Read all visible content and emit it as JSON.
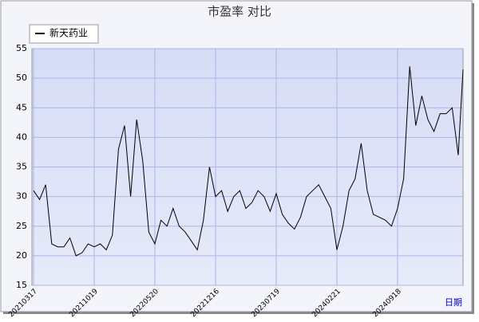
{
  "chart_data": {
    "type": "line",
    "title": "市盈率  对比",
    "x_label": "日期",
    "categories": [
      "20210317",
      null,
      null,
      null,
      null,
      null,
      null,
      null,
      null,
      null,
      "20211019",
      null,
      null,
      null,
      null,
      null,
      null,
      null,
      null,
      null,
      "20220520",
      null,
      null,
      null,
      null,
      null,
      null,
      null,
      null,
      null,
      "20221216",
      null,
      null,
      null,
      null,
      null,
      null,
      null,
      null,
      null,
      "20230719",
      null,
      null,
      null,
      null,
      null,
      null,
      null,
      null,
      null,
      "20240221",
      null,
      null,
      null,
      null,
      null,
      null,
      null,
      null,
      null,
      "20240918",
      null,
      null,
      null,
      null,
      null,
      null,
      null,
      null,
      null,
      null,
      null
    ],
    "series": [
      {
        "name": "新天药业",
        "color": "#000000",
        "values": [
          31,
          29.5,
          32,
          22,
          21.5,
          21.5,
          23,
          20,
          20.5,
          22,
          21.5,
          22,
          21,
          23.5,
          38,
          42,
          30,
          43,
          36,
          24,
          22,
          26,
          25,
          28,
          25,
          24,
          22.5,
          21,
          26,
          35,
          30,
          31,
          27.5,
          30,
          31,
          28,
          29,
          31,
          30,
          27.5,
          30.5,
          27,
          25.5,
          24.5,
          26.5,
          30,
          31,
          32,
          30,
          28,
          21,
          25,
          31,
          33,
          39,
          31,
          27,
          26.5,
          26,
          25,
          28,
          33,
          52,
          42,
          47,
          43,
          41,
          44,
          44,
          45,
          37,
          51.5
        ]
      }
    ],
    "ylim": [
      15,
      55
    ],
    "yticks": [
      15,
      20,
      25,
      30,
      35,
      40,
      45,
      50,
      55
    ],
    "grid": true
  }
}
